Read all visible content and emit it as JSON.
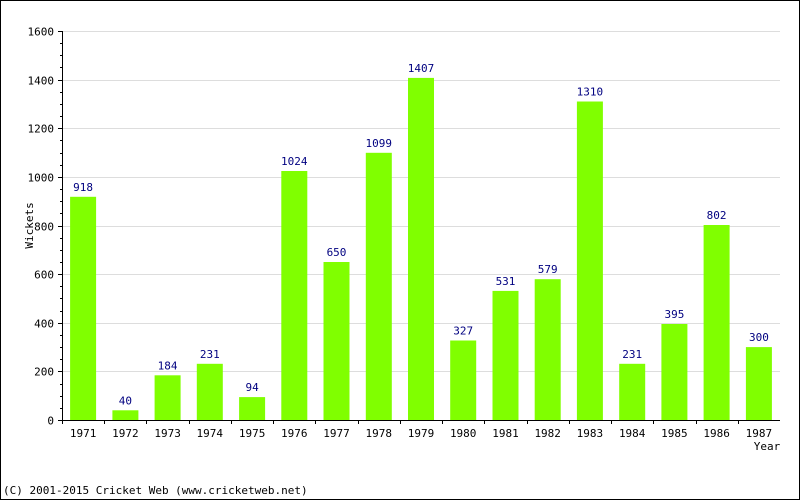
{
  "chart_data": {
    "type": "bar",
    "categories": [
      "1971",
      "1972",
      "1973",
      "1974",
      "1975",
      "1976",
      "1977",
      "1978",
      "1979",
      "1980",
      "1981",
      "1982",
      "1983",
      "1984",
      "1985",
      "1986",
      "1987"
    ],
    "values": [
      918,
      40,
      184,
      231,
      94,
      1024,
      650,
      1099,
      1407,
      327,
      531,
      579,
      1310,
      231,
      395,
      802,
      300
    ],
    "data_labels": [
      "918",
      "40",
      "184",
      "231",
      "94",
      "1024",
      "650",
      "1099",
      "1407",
      "327",
      "531",
      "579",
      "1310",
      "231",
      "395",
      "802",
      "300"
    ],
    "title": "",
    "xlabel": "Year",
    "ylabel": "Wickets",
    "ylim": [
      0,
      1600
    ],
    "yticks": [
      0,
      200,
      400,
      600,
      800,
      1000,
      1200,
      1400,
      1600
    ],
    "ytick_labels": [
      "0",
      "200",
      "400",
      "600",
      "800",
      "1000",
      "1200",
      "1400",
      "1600"
    ],
    "grid": true,
    "legend": "none",
    "colors": {
      "bar": "#80ff00",
      "bar_edge": "#66cc00",
      "data_label": "#000080",
      "grid": "#dddddd",
      "axis": "#000000"
    }
  },
  "footer": {
    "copyright": "(C) 2001-2015 Cricket Web (www.cricketweb.net)"
  }
}
